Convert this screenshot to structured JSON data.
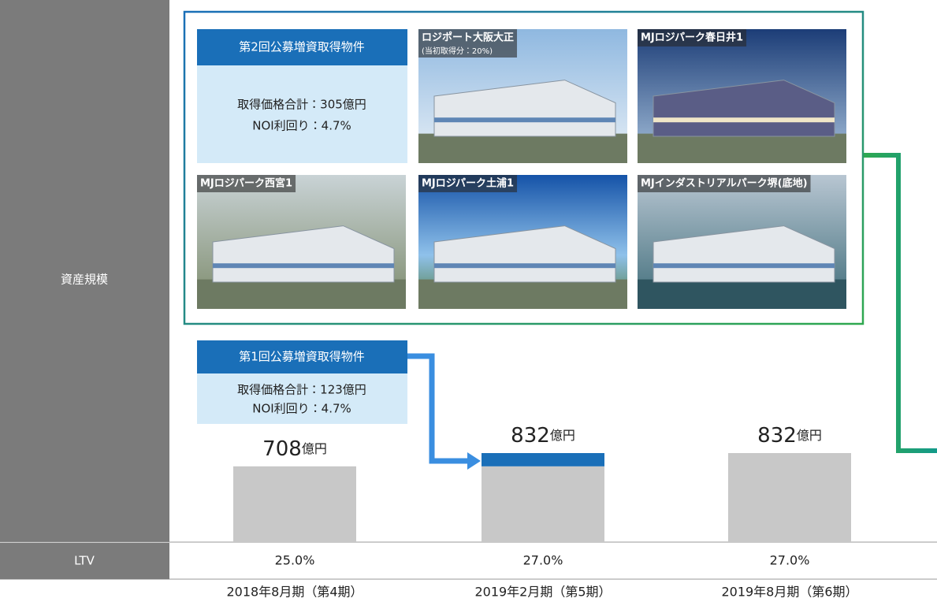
{
  "chart_data": {
    "type": "bar",
    "row_label": "資産規模",
    "categories": [
      "2018年8月期（第4期）",
      "2019年2月期（第5期）",
      "2019年8月期（第6期）"
    ],
    "series": [
      {
        "color": "#c8c8c8",
        "values": [
          708,
          708,
          832
        ]
      },
      {
        "color": "#1a6fb8",
        "values": [
          null,
          124,
          null
        ]
      }
    ],
    "totals": [
      708,
      832,
      832
    ],
    "unit": "億円",
    "ltv": {
      "label": "LTV",
      "values": [
        25.0,
        27.0,
        27.0
      ],
      "value_labels": [
        "25.0%",
        "27.0%",
        "27.0%"
      ]
    }
  },
  "offerings": [
    {
      "title": "第2回公募増資取得物件",
      "lines": [
        "取得価格合計：305億円",
        "NOI利回り：4.7%"
      ],
      "properties": [
        {
          "name": "ロジポート大阪大正",
          "note": "(当初取得分：20%)"
        },
        {
          "name": "MJロジパーク春日井1"
        },
        {
          "name": "MJロジパーク西宮1"
        },
        {
          "name": "MJロジパーク土浦1"
        },
        {
          "name": "MJインダストリアルパーク堺(底地)"
        }
      ]
    },
    {
      "title": "第1回公募増資取得物件",
      "lines": [
        "取得価格合計：123億円",
        "NOI利回り：4.7%"
      ]
    }
  ]
}
